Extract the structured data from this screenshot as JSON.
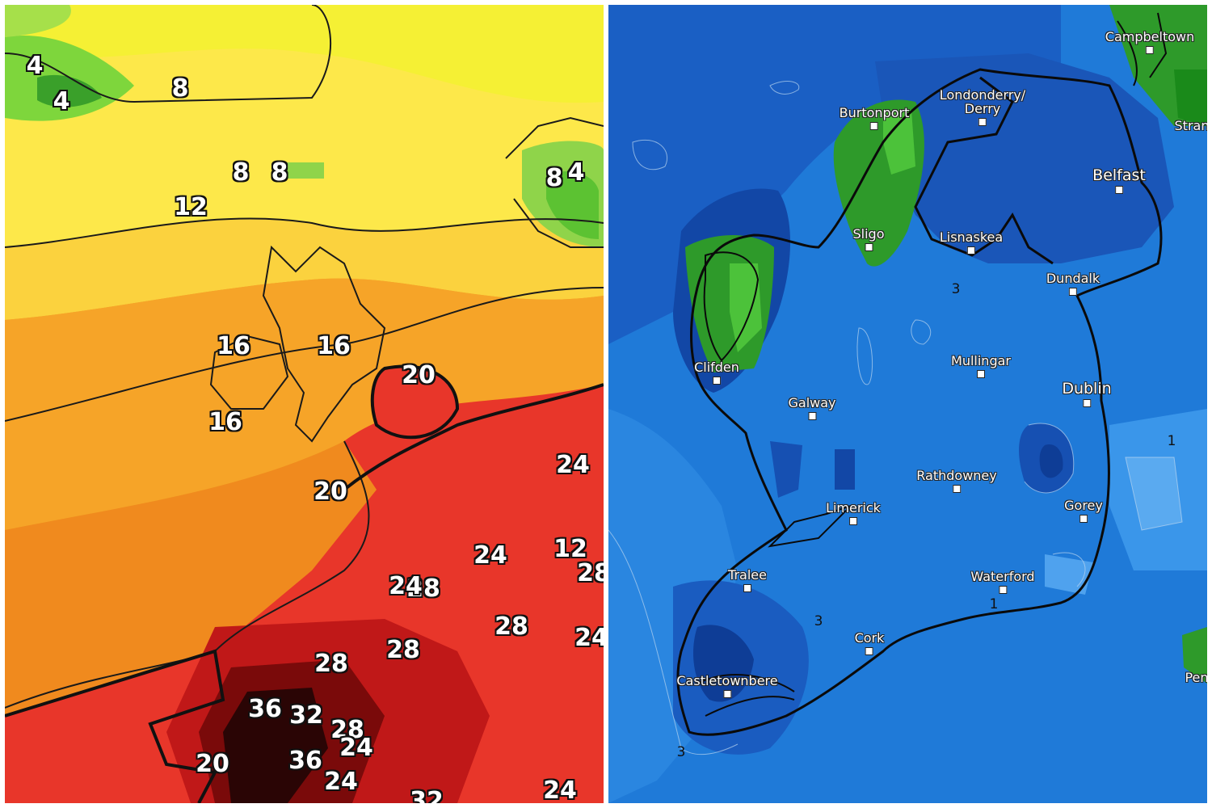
{
  "left_map": {
    "isotherm_labels": [
      "4",
      "4",
      "8",
      "8",
      "8",
      "8",
      "4",
      "12",
      "16",
      "16",
      "16",
      "20",
      "20",
      "24",
      "24",
      "28",
      "28",
      "28",
      "28",
      "36",
      "32",
      "28",
      "36",
      "24",
      "20",
      "24",
      "12",
      "24",
      "24",
      "28",
      "32",
      "24"
    ]
  },
  "right_map": {
    "cities": [
      "Campbeltown",
      "Londonderry/",
      "Derry",
      "Burtonport",
      "Belfast",
      "Sligo",
      "Lisnaskea",
      "Dundalk",
      "Clifden",
      "Mullingar",
      "Dublin",
      "Galway",
      "Rathdowney",
      "Limerick",
      "Gorey",
      "Tralee",
      "Waterford",
      "Cork",
      "Castletownbere",
      "Stran",
      "Pen"
    ],
    "contour_labels": [
      "3",
      "1",
      "3",
      "1",
      "3"
    ]
  }
}
